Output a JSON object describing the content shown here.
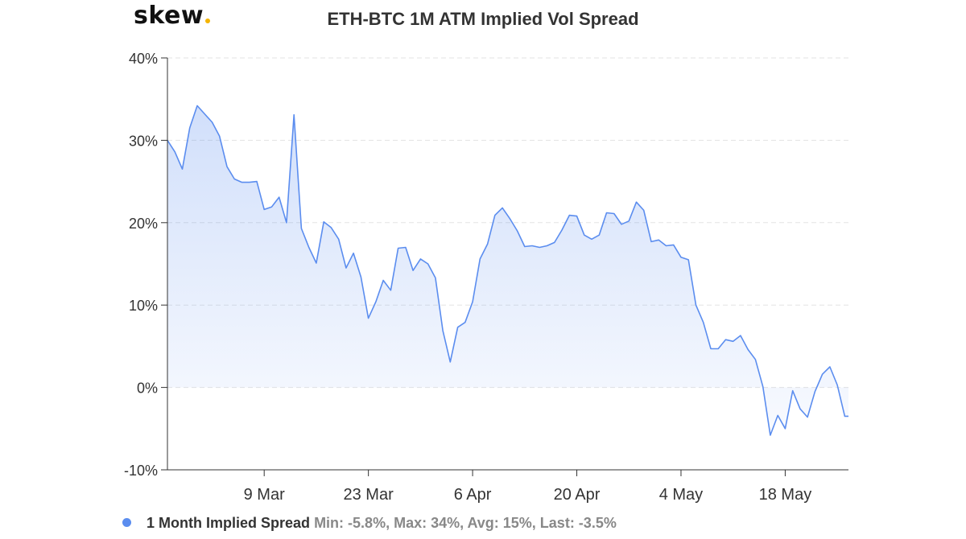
{
  "brand": {
    "logo_text": "skew",
    "dot_color": "#f4b400"
  },
  "chart_data": {
    "type": "area",
    "title": "ETH-BTC 1M ATM Implied Vol Spread",
    "ylim": [
      -10,
      40
    ],
    "yticks": [
      40,
      30,
      20,
      10,
      0,
      -10
    ],
    "ytick_labels": [
      "40%",
      "30%",
      "20%",
      "10%",
      "0%",
      "-10%"
    ],
    "xticks": [
      {
        "x": 11,
        "label": "9 Mar"
      },
      {
        "x": 25,
        "label": "23 Mar"
      },
      {
        "x": 39,
        "label": "6 Apr"
      },
      {
        "x": 53,
        "label": "20 Apr"
      },
      {
        "x": 67,
        "label": "4 May"
      },
      {
        "x": 81,
        "label": "18 May"
      }
    ],
    "xlim": [
      -2,
      89.5
    ],
    "grid": true,
    "line_color": "#5b8def",
    "series": [
      {
        "name": "1 Month Implied Spread",
        "x": [
          -2,
          -1,
          0,
          1,
          2,
          3,
          4,
          5,
          6,
          7,
          8,
          9,
          10,
          11,
          12,
          13,
          14,
          15,
          16,
          17,
          18,
          19,
          20,
          21,
          22,
          23,
          24,
          25,
          26,
          27,
          28,
          29,
          30,
          31,
          32,
          33,
          34,
          35,
          36,
          37,
          38,
          39,
          40,
          41,
          42,
          43,
          44,
          45,
          46,
          47,
          48,
          49,
          50,
          51,
          52,
          53,
          54,
          55,
          56,
          57,
          58,
          59,
          60,
          61,
          62,
          63,
          64,
          65,
          66,
          67,
          68,
          69,
          70,
          71,
          72,
          73,
          74,
          75,
          76,
          77,
          78,
          79,
          80,
          81,
          82,
          83,
          84,
          85,
          86,
          87,
          88,
          89,
          89.5
        ],
        "values": [
          30,
          28.6,
          26.5,
          31.5,
          34.2,
          33.2,
          32.2,
          30.5,
          26.8,
          25.3,
          24.9,
          24.9,
          25.0,
          21.6,
          21.9,
          23.1,
          20.0,
          33.1,
          19.3,
          17.0,
          15.1,
          20.1,
          19.4,
          18.0,
          14.5,
          16.3,
          13.4,
          8.4,
          10.4,
          13.0,
          11.8,
          16.9,
          17.0,
          14.2,
          15.6,
          15.0,
          13.3,
          6.9,
          3.1,
          7.3,
          7.9,
          10.4,
          15.6,
          17.4,
          20.9,
          21.8,
          20.5,
          19.0,
          17.1,
          17.2,
          17.0,
          17.2,
          17.6,
          19.1,
          20.9,
          20.8,
          18.5,
          18.0,
          18.5,
          21.2,
          21.1,
          19.8,
          20.2,
          22.5,
          21.5,
          17.7,
          17.9,
          17.2,
          17.3,
          15.8,
          15.5,
          10.0,
          7.9,
          4.7,
          4.7,
          5.8,
          5.6,
          6.3,
          4.6,
          3.4,
          0.1,
          -5.8,
          -3.4,
          -5.0,
          -0.4,
          -2.6,
          -3.6,
          -0.5,
          1.6,
          2.5,
          0.3,
          -3.5,
          -3.5
        ]
      }
    ],
    "stats": {
      "min": "-5.8%",
      "max": "34%",
      "avg": "15%",
      "last": "-3.5%"
    }
  },
  "legend": {
    "marker_color": "#5b8def",
    "name": "1 Month Implied Spread",
    "stats_text": "Min: -5.8%, Max: 34%, Avg: 15%, Last: -3.5%"
  }
}
